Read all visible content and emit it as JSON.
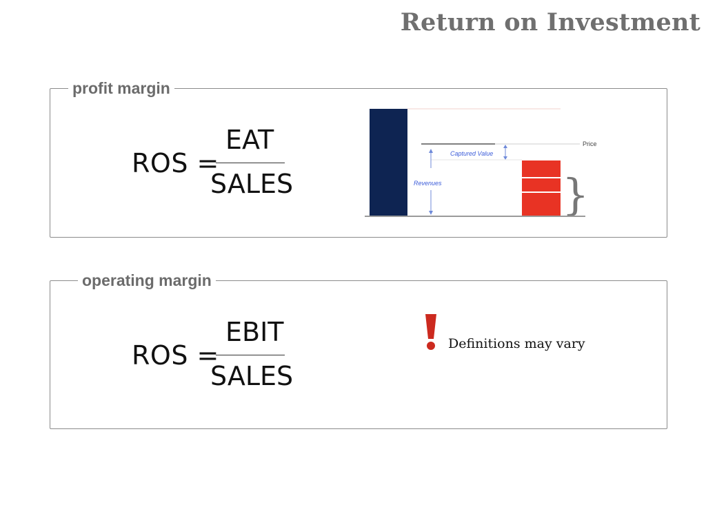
{
  "slide": {
    "title": "Return on Investment"
  },
  "profit_margin": {
    "legend": "profit margin",
    "formula": {
      "lhs": "ROS =",
      "numerator": "EAT",
      "denominator": "SALES"
    },
    "diagram": {
      "labels": {
        "price": "Price",
        "captured_value": "Captured Value",
        "revenues": "Revenues"
      },
      "colors": {
        "tall_bar": "#0e2452",
        "stacked_bar": "#e83324",
        "annotation": "#3a5bd9",
        "baseline": "#9a9a9a",
        "brace": "#777777"
      }
    }
  },
  "operating_margin": {
    "legend": "operating margin",
    "formula": {
      "lhs": "ROS =",
      "numerator": "EBIT",
      "denominator": "SALES"
    },
    "warning": {
      "icon": "exclamation-icon",
      "text": "Definitions may vary",
      "color": "#cc2a1f"
    }
  }
}
